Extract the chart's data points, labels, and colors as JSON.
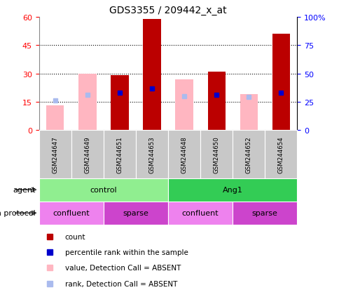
{
  "title": "GDS3355 / 209442_x_at",
  "samples": [
    "GSM244647",
    "GSM244649",
    "GSM244651",
    "GSM244653",
    "GSM244648",
    "GSM244650",
    "GSM244652",
    "GSM244654"
  ],
  "count_values": [
    null,
    null,
    29,
    59,
    null,
    31,
    null,
    51
  ],
  "count_absent": [
    13,
    30,
    null,
    null,
    27,
    null,
    19,
    null
  ],
  "percentile_rank": [
    null,
    null,
    33,
    37,
    null,
    31,
    null,
    33
  ],
  "percentile_absent": [
    26,
    31,
    null,
    null,
    30,
    null,
    29,
    null
  ],
  "ylim_left": [
    0,
    60
  ],
  "ylim_right": [
    0,
    100
  ],
  "yticks_left": [
    0,
    15,
    30,
    45,
    60
  ],
  "yticks_right": [
    0,
    25,
    50,
    75,
    100
  ],
  "agent_groups": [
    {
      "label": "control",
      "start": 0,
      "end": 4,
      "color": "#90EE90"
    },
    {
      "label": "Ang1",
      "start": 4,
      "end": 8,
      "color": "#33CC55"
    }
  ],
  "protocol_groups": [
    {
      "label": "confluent",
      "start": 0,
      "end": 2,
      "color": "#EE82EE"
    },
    {
      "label": "sparse",
      "start": 2,
      "end": 4,
      "color": "#CC44CC"
    },
    {
      "label": "confluent",
      "start": 4,
      "end": 6,
      "color": "#EE82EE"
    },
    {
      "label": "sparse",
      "start": 6,
      "end": 8,
      "color": "#CC44CC"
    }
  ],
  "color_count": "#BB0000",
  "color_count_absent": "#FFB6C1",
  "color_rank": "#0000CC",
  "color_rank_absent": "#AABBEE",
  "label_count": "count",
  "label_rank": "percentile rank within the sample",
  "label_count_absent": "value, Detection Call = ABSENT",
  "label_rank_absent": "rank, Detection Call = ABSENT",
  "grid_yticks": [
    15,
    30,
    45
  ]
}
